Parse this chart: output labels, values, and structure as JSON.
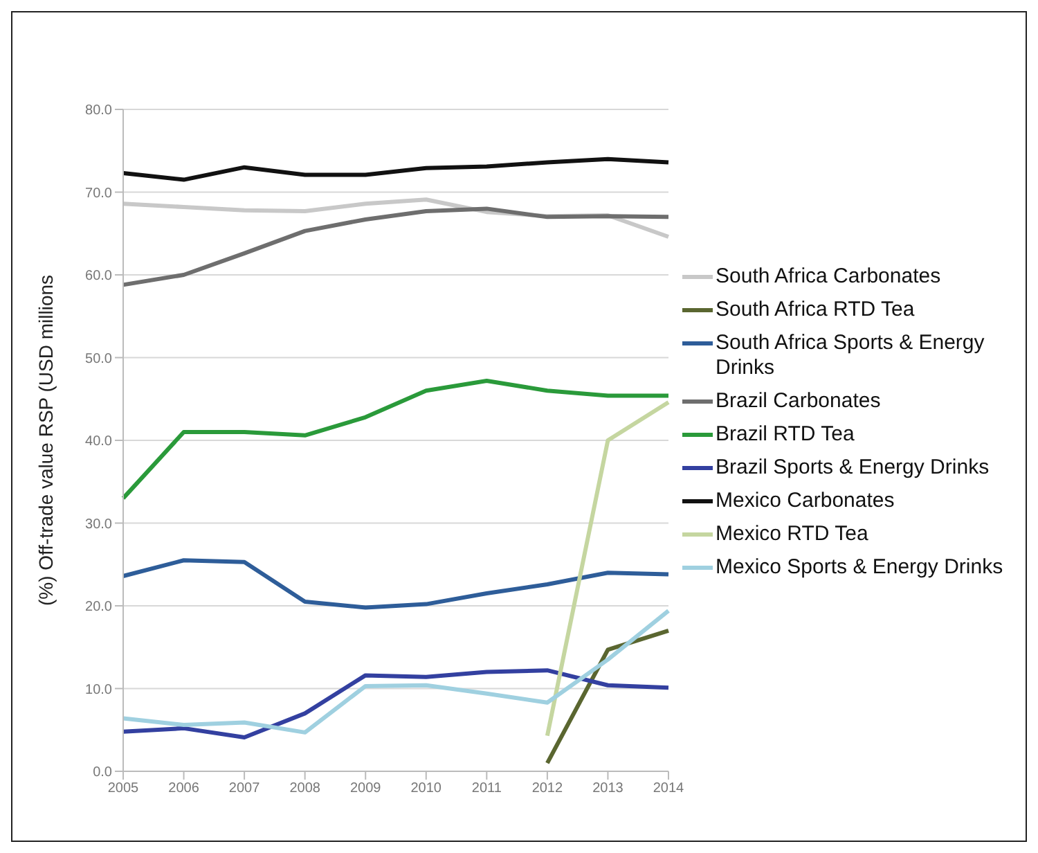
{
  "chart_data": {
    "type": "line",
    "ylabel": "(%) Off-trade value RSP (USD millions",
    "categories": [
      "2005",
      "2006",
      "2007",
      "2008",
      "2009",
      "2010",
      "2011",
      "2012",
      "2013",
      "2014"
    ],
    "series": [
      {
        "name": "South Africa Carbonates",
        "color": "#c8c8c8",
        "values": [
          68.6,
          68.2,
          67.8,
          67.7,
          68.6,
          69.1,
          67.6,
          67.1,
          67.2,
          64.6
        ]
      },
      {
        "name": "South Africa RTD Tea",
        "color": "#5a6630",
        "values": [
          null,
          null,
          null,
          null,
          null,
          null,
          null,
          1.0,
          14.7,
          17.0
        ]
      },
      {
        "name": "South Africa Sports & Energy Drinks",
        "color": "#2e5d99",
        "values": [
          23.6,
          25.5,
          25.3,
          20.5,
          19.8,
          20.2,
          21.5,
          22.6,
          24.0,
          23.8
        ]
      },
      {
        "name": "Brazil Carbonates",
        "color": "#6e6e6e",
        "values": [
          58.8,
          60.0,
          62.6,
          65.3,
          66.7,
          67.7,
          68.0,
          67.0,
          67.1,
          67.0
        ]
      },
      {
        "name": "Brazil RTD Tea",
        "color": "#2a9a3a",
        "values": [
          33.0,
          41.0,
          41.0,
          40.6,
          42.8,
          46.0,
          47.2,
          46.0,
          45.4,
          45.4
        ]
      },
      {
        "name": "Brazil Sports & Energy Drinks",
        "color": "#3340a0",
        "values": [
          4.8,
          5.2,
          4.1,
          7.0,
          11.6,
          11.4,
          12.0,
          12.2,
          10.4,
          10.1
        ]
      },
      {
        "name": "Mexico Carbonates",
        "color": "#111111",
        "values": [
          72.3,
          71.5,
          73.0,
          72.1,
          72.1,
          72.9,
          73.1,
          73.6,
          74.0,
          73.6
        ]
      },
      {
        "name": "Mexico RTD Tea",
        "color": "#c5d6a0",
        "values": [
          null,
          null,
          null,
          null,
          null,
          null,
          null,
          4.3,
          40.0,
          44.6
        ]
      },
      {
        "name": "Mexico Sports & Energy Drinks",
        "color": "#9fd0e0",
        "values": [
          6.4,
          5.6,
          5.9,
          4.7,
          10.3,
          10.4,
          9.4,
          8.3,
          13.5,
          19.4
        ]
      }
    ],
    "ylim": [
      0,
      80
    ],
    "yticks": [
      {
        "value": 0,
        "label": "0.0"
      },
      {
        "value": 10,
        "label": "10.0"
      },
      {
        "value": 20,
        "label": "20.0"
      },
      {
        "value": 30,
        "label": "30.0"
      },
      {
        "value": 40,
        "label": "40.0"
      },
      {
        "value": 50,
        "label": "50.0"
      },
      {
        "value": 60,
        "label": "60.0"
      },
      {
        "value": 70,
        "label": "70.0"
      },
      {
        "value": 80,
        "label": "80.0"
      }
    ],
    "grid": "y",
    "legend": "right",
    "marker": "none",
    "line_style": "solid"
  }
}
